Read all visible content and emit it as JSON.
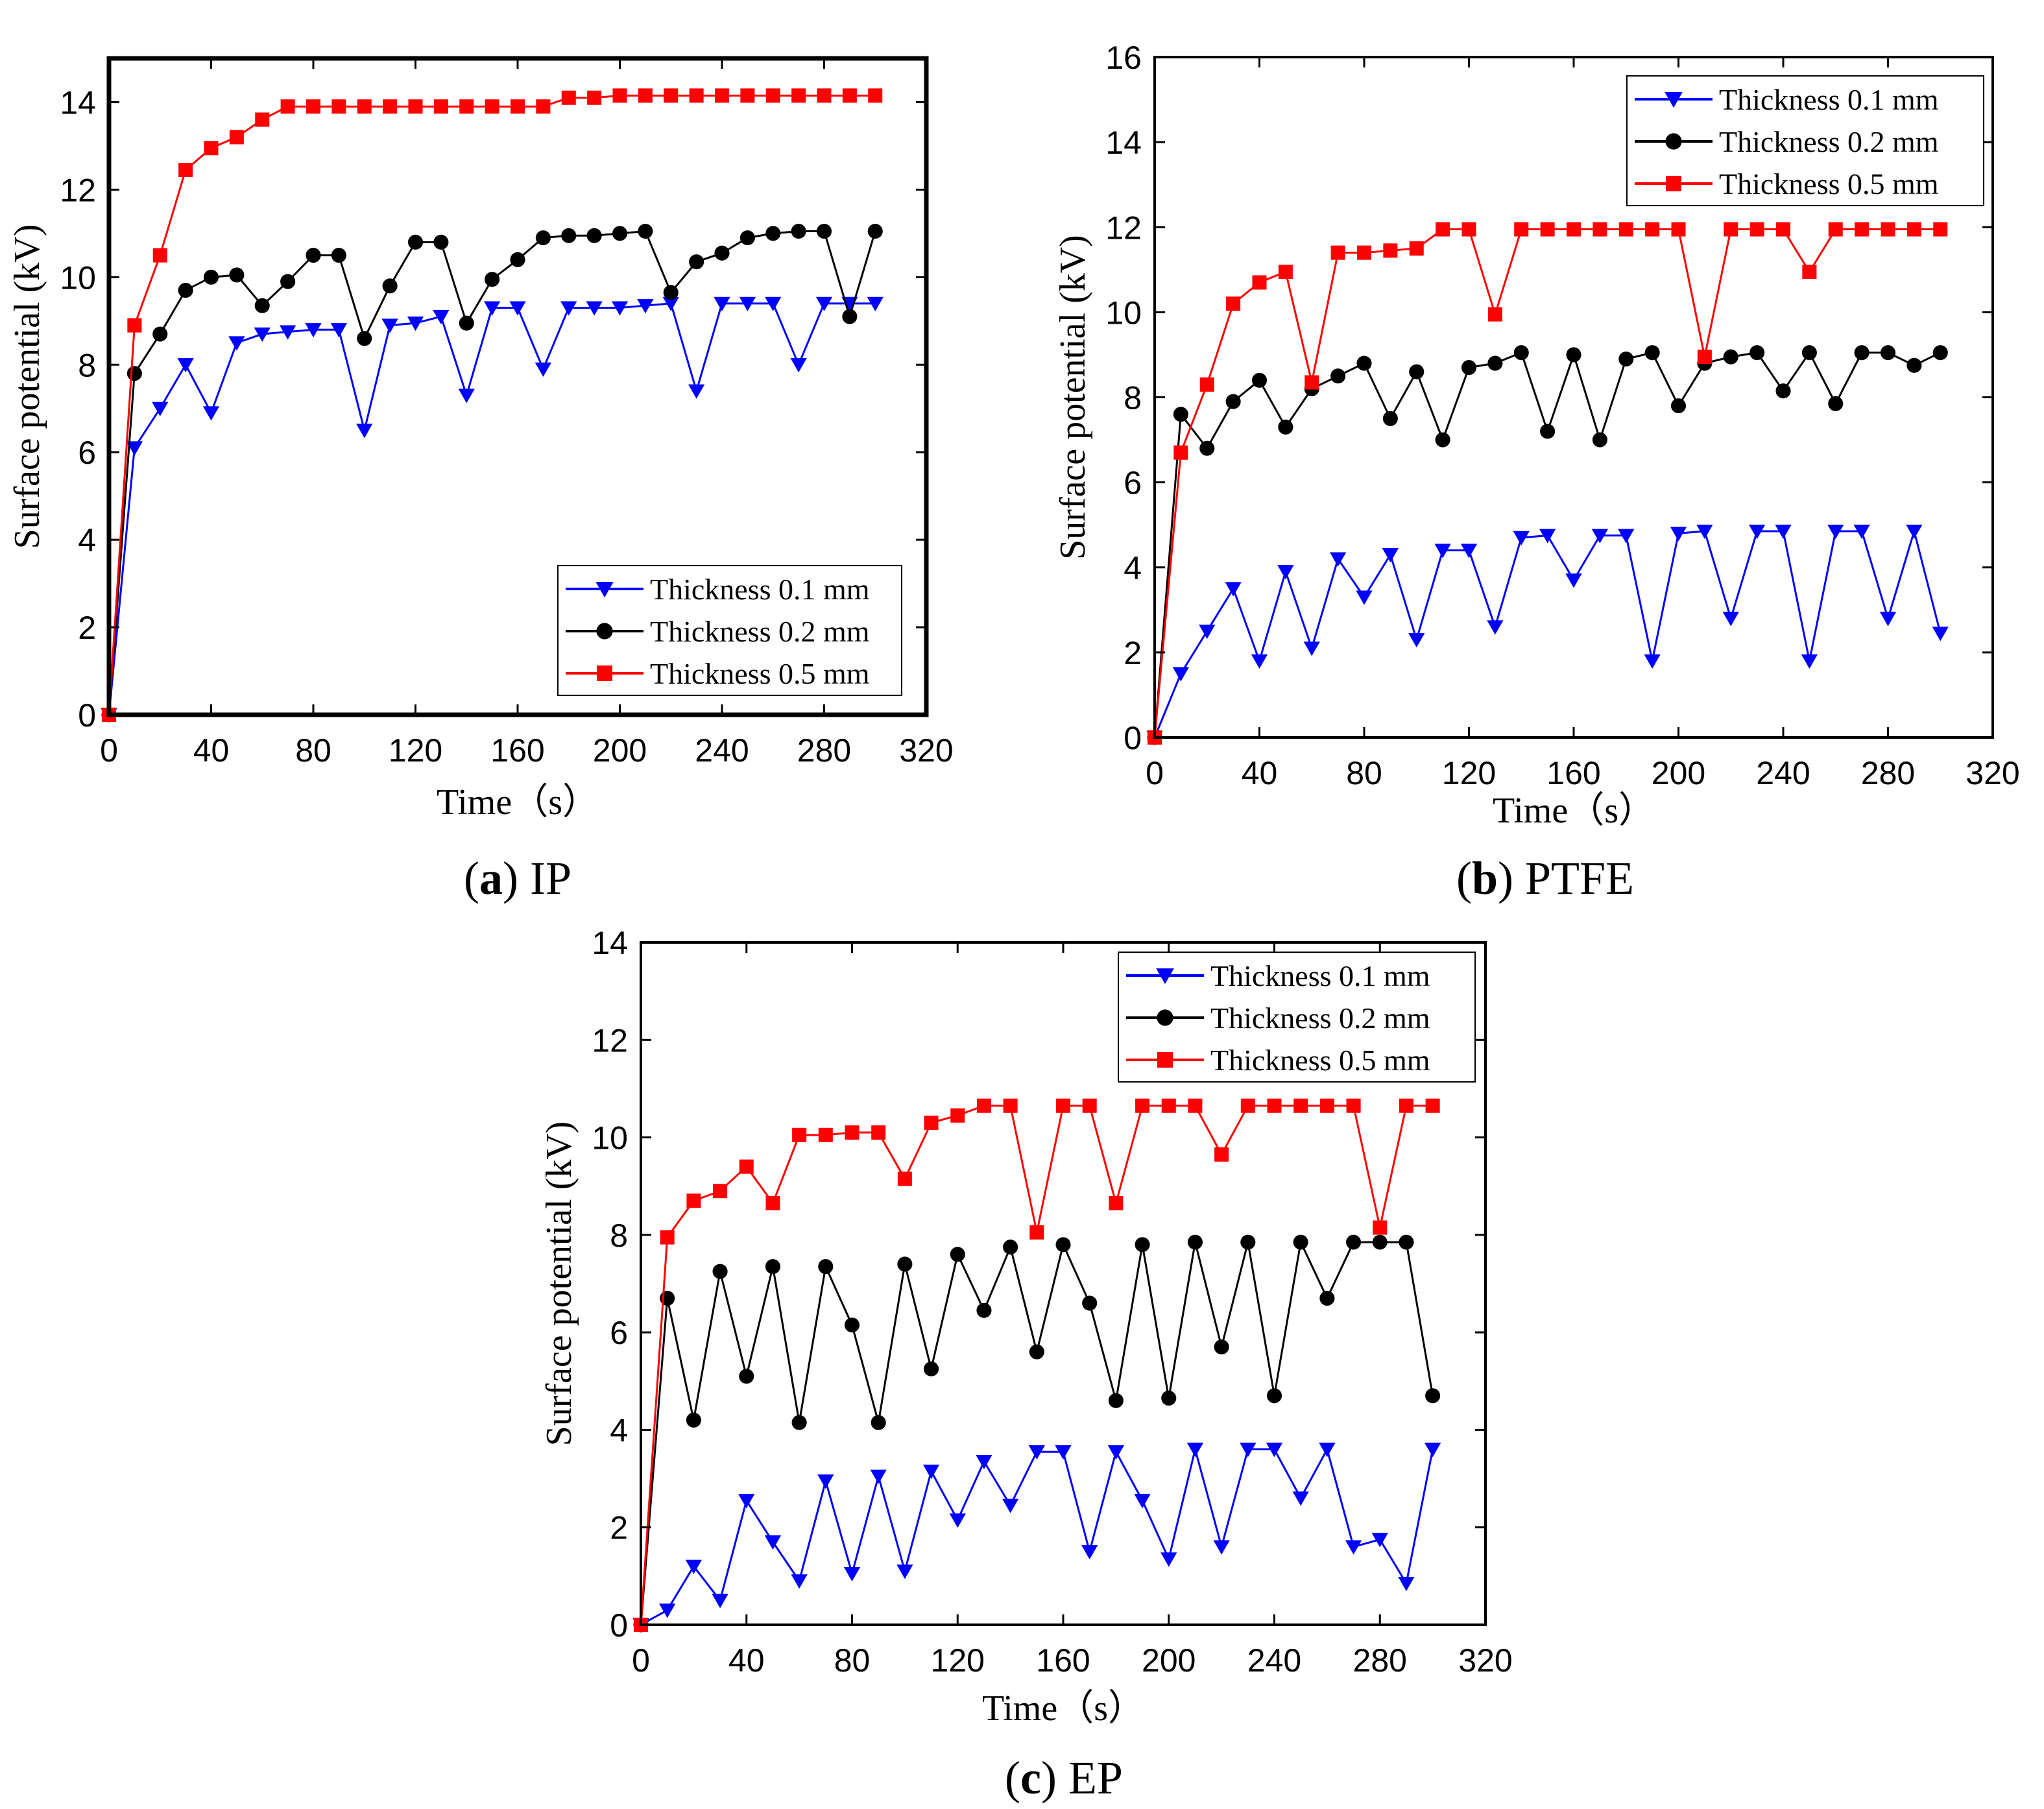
{
  "chart_data": [
    {
      "type": "line",
      "panel_id": "IP",
      "caption": {
        "letter": "a",
        "text": "IP"
      },
      "xlabel": "Time（s）",
      "ylabel": "Surface potential (kV)",
      "xlim": [
        0,
        320
      ],
      "ylim": [
        0,
        15
      ],
      "xticks": [
        0,
        40,
        80,
        120,
        160,
        200,
        240,
        280,
        320
      ],
      "yticks": [
        0,
        2,
        4,
        6,
        8,
        10,
        12,
        14
      ],
      "legend_position": "bottom-right",
      "x": [
        0,
        10,
        20,
        30,
        40,
        50,
        60,
        70,
        80,
        90,
        100,
        110,
        120,
        130,
        140,
        150,
        160,
        170,
        180,
        190,
        200,
        210,
        220,
        230,
        240,
        250,
        260,
        270,
        280,
        290,
        300
      ],
      "series": [
        {
          "name": "Thickness 0.1 mm",
          "color": "#0000ff",
          "marker": "triangle-down",
          "values": [
            0,
            6.1,
            7.0,
            8.0,
            6.9,
            8.5,
            8.7,
            8.75,
            8.8,
            8.8,
            6.5,
            8.9,
            8.95,
            9.1,
            7.3,
            9.3,
            9.3,
            7.9,
            9.3,
            9.3,
            9.3,
            9.35,
            9.4,
            7.4,
            9.4,
            9.4,
            9.4,
            8.0,
            9.4,
            9.4,
            9.4
          ]
        },
        {
          "name": "Thickness 0.2 mm",
          "color": "#000000",
          "marker": "circle",
          "values": [
            0,
            7.8,
            8.7,
            9.7,
            10.0,
            10.05,
            9.35,
            9.9,
            10.5,
            10.5,
            8.6,
            9.8,
            10.8,
            10.8,
            8.95,
            9.95,
            10.4,
            10.9,
            10.95,
            10.95,
            11.0,
            11.05,
            9.65,
            10.35,
            10.55,
            10.9,
            11.0,
            11.05,
            11.05,
            9.1,
            11.05
          ]
        },
        {
          "name": "Thickness 0.5 mm",
          "color": "#ff0000",
          "marker": "square",
          "values": [
            0,
            8.9,
            10.5,
            12.45,
            12.95,
            13.2,
            13.6,
            13.9,
            13.9,
            13.9,
            13.9,
            13.9,
            13.9,
            13.9,
            13.9,
            13.9,
            13.9,
            13.9,
            14.1,
            14.1,
            14.15,
            14.15,
            14.15,
            14.15,
            14.15,
            14.15,
            14.15,
            14.15,
            14.15,
            14.15,
            14.15
          ]
        }
      ]
    },
    {
      "type": "line",
      "panel_id": "PTFE",
      "caption": {
        "letter": "b",
        "text": "PTFE"
      },
      "xlabel": "Time（s）",
      "ylabel": "Surface potential (kV)",
      "xlim": [
        0,
        320
      ],
      "ylim": [
        0,
        16
      ],
      "xticks": [
        0,
        40,
        80,
        120,
        160,
        200,
        240,
        280,
        320
      ],
      "yticks": [
        0,
        2,
        4,
        6,
        8,
        10,
        12,
        14,
        16
      ],
      "legend_position": "top-right",
      "x": [
        0,
        10,
        20,
        30,
        40,
        50,
        60,
        70,
        80,
        90,
        100,
        110,
        120,
        130,
        140,
        150,
        160,
        170,
        180,
        190,
        200,
        210,
        220,
        230,
        240,
        250,
        260,
        270,
        280,
        290,
        300
      ],
      "series": [
        {
          "name": "Thickness 0.1 mm",
          "color": "#0000ff",
          "marker": "triangle-down",
          "values": [
            0,
            1.5,
            2.5,
            3.5,
            1.8,
            3.9,
            2.1,
            4.2,
            3.3,
            4.3,
            2.3,
            4.4,
            4.4,
            2.6,
            4.7,
            4.75,
            3.7,
            4.75,
            4.75,
            1.8,
            4.8,
            4.85,
            2.8,
            4.85,
            4.85,
            1.8,
            4.85,
            4.85,
            2.8,
            4.85,
            2.45
          ]
        },
        {
          "name": "Thickness 0.2 mm",
          "color": "#000000",
          "marker": "circle",
          "values": [
            0,
            7.6,
            6.8,
            7.9,
            8.4,
            7.3,
            8.2,
            8.5,
            8.8,
            7.5,
            8.6,
            7.0,
            8.7,
            8.8,
            9.05,
            7.2,
            9.0,
            7.0,
            8.9,
            9.05,
            7.8,
            8.8,
            8.95,
            9.05,
            8.15,
            9.05,
            7.85,
            9.05,
            9.05,
            8.75,
            9.05
          ]
        },
        {
          "name": "Thickness 0.5 mm",
          "color": "#ff0000",
          "marker": "square",
          "values": [
            0,
            6.7,
            8.3,
            10.2,
            10.7,
            10.95,
            8.35,
            11.4,
            11.4,
            11.45,
            11.5,
            11.95,
            11.95,
            9.95,
            11.95,
            11.95,
            11.95,
            11.95,
            11.95,
            11.95,
            11.95,
            8.95,
            11.95,
            11.95,
            11.95,
            10.95,
            11.95,
            11.95,
            11.95,
            11.95,
            11.95
          ]
        }
      ]
    },
    {
      "type": "line",
      "panel_id": "EP",
      "caption": {
        "letter": "c",
        "text": "EP"
      },
      "xlabel": "Time（s）",
      "ylabel": "Surface potential (kV)",
      "xlim": [
        0,
        320
      ],
      "ylim": [
        0,
        14
      ],
      "xticks": [
        0,
        40,
        80,
        120,
        160,
        200,
        240,
        280,
        320
      ],
      "yticks": [
        0,
        2,
        4,
        6,
        8,
        10,
        12,
        14
      ],
      "legend_position": "top-right",
      "x": [
        0,
        10,
        20,
        30,
        40,
        50,
        60,
        70,
        80,
        90,
        100,
        110,
        120,
        130,
        140,
        150,
        160,
        170,
        180,
        190,
        200,
        210,
        220,
        230,
        240,
        250,
        260,
        270,
        280,
        290,
        300
      ],
      "series": [
        {
          "name": "Thickness 0.1 mm",
          "color": "#0000ff",
          "marker": "triangle-down",
          "values": [
            0,
            0.3,
            1.2,
            0.5,
            2.55,
            1.7,
            0.9,
            2.95,
            1.05,
            3.05,
            1.1,
            3.15,
            2.15,
            3.35,
            2.45,
            3.55,
            3.55,
            1.5,
            3.55,
            2.55,
            1.35,
            3.6,
            1.6,
            3.6,
            3.6,
            2.6,
            3.6,
            1.6,
            1.75,
            0.85,
            3.6
          ]
        },
        {
          "name": "Thickness 0.2 mm",
          "color": "#000000",
          "marker": "circle",
          "values": [
            0,
            6.7,
            4.2,
            7.25,
            5.1,
            7.35,
            4.15,
            7.35,
            6.15,
            4.15,
            7.4,
            5.25,
            7.6,
            6.45,
            7.75,
            5.6,
            7.8,
            6.6,
            4.6,
            7.8,
            4.65,
            7.85,
            5.7,
            7.85,
            4.7,
            7.85,
            6.7,
            7.85,
            7.85,
            7.85,
            4.7
          ]
        },
        {
          "name": "Thickness 0.5 mm",
          "color": "#ff0000",
          "marker": "square",
          "values": [
            0,
            7.95,
            8.7,
            8.9,
            9.4,
            8.65,
            10.05,
            10.05,
            10.1,
            10.1,
            9.15,
            10.3,
            10.45,
            10.65,
            10.65,
            8.05,
            10.65,
            10.65,
            8.65,
            10.65,
            10.65,
            10.65,
            9.65,
            10.65,
            10.65,
            10.65,
            10.65,
            10.65,
            8.15,
            10.65,
            10.65
          ]
        }
      ]
    }
  ]
}
